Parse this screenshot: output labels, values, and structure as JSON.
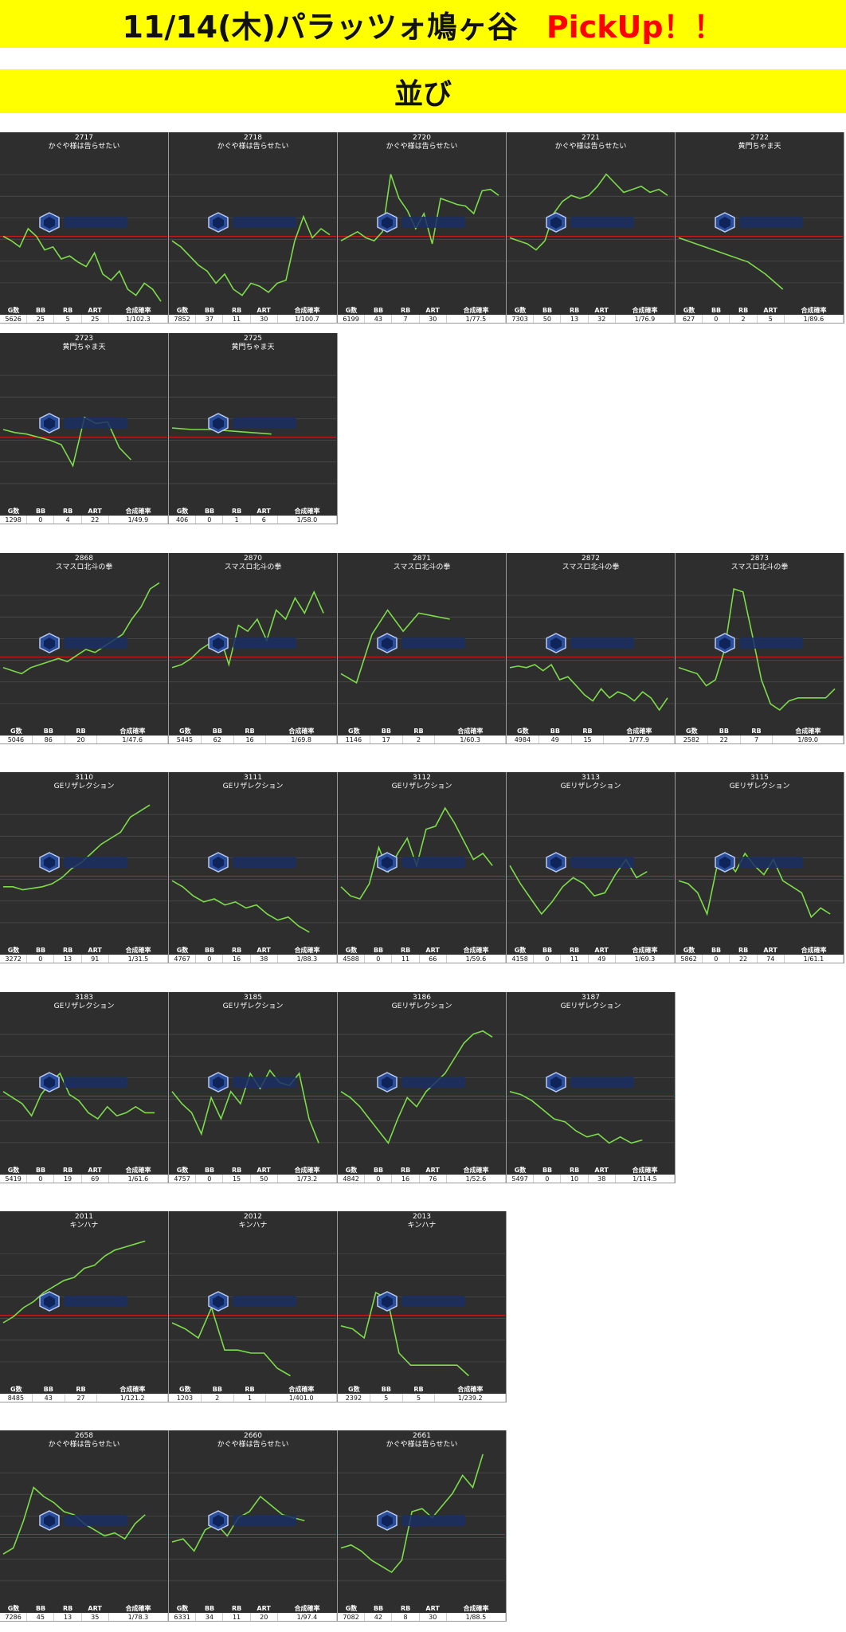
{
  "title": {
    "main": "11/14(木)パラッツォ鳩ヶ谷",
    "pick": "PickUp！！"
  },
  "section": {
    "label": "並び"
  },
  "watermark": {
    "name": "アナスロ",
    "sub": "Analysis Slot"
  },
  "colors": {
    "banner": "#ffff00",
    "line": "#7ddc4a",
    "redline": "#c81e1e",
    "panel": "#2e2e2e"
  },
  "panels": [
    {
      "id": "2717",
      "model": "かぐや様は告らせたい",
      "cols": [
        "G数",
        "BB",
        "RB",
        "ART",
        "合成確率"
      ],
      "vals": [
        "5626",
        "25",
        "5",
        "25",
        "1/102.3"
      ],
      "line": [
        0.55,
        0.58,
        0.62,
        0.5,
        0.55,
        0.64,
        0.62,
        0.7,
        0.68,
        0.72,
        0.75,
        0.66,
        0.8,
        0.84,
        0.78,
        0.9,
        0.94,
        0.86,
        0.9,
        0.98
      ]
    },
    {
      "id": "2718",
      "model": "かぐや様は告らせたい",
      "cols": [
        "G数",
        "BB",
        "RB",
        "ART",
        "合成確率"
      ],
      "vals": [
        "7852",
        "37",
        "11",
        "30",
        "1/100.7"
      ],
      "line": [
        0.58,
        0.62,
        0.68,
        0.74,
        0.78,
        0.86,
        0.8,
        0.9,
        0.94,
        0.86,
        0.88,
        0.92,
        0.86,
        0.84,
        0.58,
        0.42,
        0.56,
        0.5,
        0.54
      ]
    },
    {
      "id": "2720",
      "model": "かぐや様は告らせたい",
      "cols": [
        "G数",
        "BB",
        "RB",
        "ART",
        "合成確率"
      ],
      "vals": [
        "6199",
        "43",
        "7",
        "30",
        "1/77.5"
      ],
      "line": [
        0.58,
        0.55,
        0.52,
        0.56,
        0.58,
        0.52,
        0.14,
        0.3,
        0.38,
        0.5,
        0.4,
        0.6,
        0.3,
        0.32,
        0.34,
        0.35,
        0.4,
        0.25,
        0.24,
        0.28
      ]
    },
    {
      "id": "2721",
      "model": "かぐや様は告らせたい",
      "cols": [
        "G数",
        "BB",
        "RB",
        "ART",
        "合成確率"
      ],
      "vals": [
        "7303",
        "50",
        "13",
        "32",
        "1/76.9"
      ],
      "line": [
        0.56,
        0.58,
        0.6,
        0.64,
        0.58,
        0.4,
        0.32,
        0.28,
        0.3,
        0.28,
        0.22,
        0.14,
        0.2,
        0.26,
        0.24,
        0.22,
        0.26,
        0.24,
        0.28
      ]
    },
    {
      "id": "2722",
      "model": "黄門ちゃま天",
      "cols": [
        "G数",
        "BB",
        "RB",
        "ART",
        "合成確率"
      ],
      "vals": [
        "627",
        "0",
        "2",
        "5",
        "1/89.6"
      ],
      "line": [
        0.56,
        0.6,
        0.64,
        0.68,
        0.72,
        0.8,
        0.9
      ]
    },
    {
      "id": "2723",
      "model": "黄門ちゃま天",
      "cols": [
        "G数",
        "BB",
        "RB",
        "ART",
        "合成確率"
      ],
      "vals": [
        "1298",
        "0",
        "4",
        "22",
        "1/49.9"
      ],
      "line": [
        0.5,
        0.52,
        0.53,
        0.55,
        0.57,
        0.6,
        0.74,
        0.42,
        0.46,
        0.45,
        0.62,
        0.7
      ]
    },
    {
      "id": "2725",
      "model": "黄門ちゃま天",
      "cols": [
        "G数",
        "BB",
        "RB",
        "ART",
        "合成確率"
      ],
      "vals": [
        "406",
        "0",
        "1",
        "6",
        "1/58.0"
      ],
      "line": [
        0.49,
        0.5,
        0.5,
        0.51,
        0.52,
        0.53
      ]
    },
    {
      "id": "2868",
      "model": "スマスロ北斗の拳",
      "cols": [
        "G数",
        "BB",
        "RB",
        "合成確率"
      ],
      "vals": [
        "5046",
        "86",
        "20",
        "1/47.6"
      ],
      "line": [
        0.62,
        0.64,
        0.66,
        0.62,
        0.6,
        0.58,
        0.56,
        0.58,
        0.54,
        0.5,
        0.52,
        0.48,
        0.44,
        0.4,
        0.3,
        0.22,
        0.1,
        0.06
      ]
    },
    {
      "id": "2870",
      "model": "スマスロ北斗の拳",
      "cols": [
        "G数",
        "BB",
        "RB",
        "合成確率"
      ],
      "vals": [
        "5445",
        "62",
        "16",
        "1/69.8"
      ],
      "line": [
        0.62,
        0.6,
        0.56,
        0.5,
        0.46,
        0.4,
        0.6,
        0.34,
        0.38,
        0.3,
        0.44,
        0.24,
        0.3,
        0.16,
        0.26,
        0.12,
        0.26
      ]
    },
    {
      "id": "2871",
      "model": "スマスロ北斗の拳",
      "cols": [
        "G数",
        "BB",
        "RB",
        "合成確率"
      ],
      "vals": [
        "1146",
        "17",
        "2",
        "1/60.3"
      ],
      "line": [
        0.66,
        0.72,
        0.4,
        0.24,
        0.38,
        0.26,
        0.28,
        0.3
      ]
    },
    {
      "id": "2872",
      "model": "スマスロ北斗の拳",
      "cols": [
        "G数",
        "BB",
        "RB",
        "合成確率"
      ],
      "vals": [
        "4984",
        "49",
        "15",
        "1/77.9"
      ],
      "line": [
        0.62,
        0.61,
        0.62,
        0.6,
        0.64,
        0.6,
        0.7,
        0.68,
        0.74,
        0.8,
        0.84,
        0.76,
        0.82,
        0.78,
        0.8,
        0.84,
        0.78,
        0.82,
        0.9,
        0.82
      ]
    },
    {
      "id": "2873",
      "model": "スマスロ北斗の拳",
      "cols": [
        "G数",
        "BB",
        "RB",
        "合成確率"
      ],
      "vals": [
        "2582",
        "22",
        "7",
        "1/89.0"
      ],
      "line": [
        0.62,
        0.64,
        0.66,
        0.74,
        0.7,
        0.5,
        0.1,
        0.12,
        0.4,
        0.7,
        0.86,
        0.9,
        0.84,
        0.82,
        0.82,
        0.82,
        0.82,
        0.76
      ]
    },
    {
      "id": "3110",
      "model": "GEリザレクション",
      "cols": [
        "G数",
        "BB",
        "RB",
        "ART",
        "合成確率"
      ],
      "vals": [
        "3272",
        "0",
        "13",
        "91",
        "1/31.5"
      ],
      "line": [
        0.62,
        0.62,
        0.64,
        0.63,
        0.62,
        0.6,
        0.56,
        0.5,
        0.46,
        0.4,
        0.34,
        0.3,
        0.26,
        0.16,
        0.12,
        0.08
      ]
    },
    {
      "id": "3111",
      "model": "GEリザレクション",
      "cols": [
        "G数",
        "BB",
        "RB",
        "ART",
        "合成確率"
      ],
      "vals": [
        "4767",
        "0",
        "16",
        "38",
        "1/88.3"
      ],
      "line": [
        0.58,
        0.62,
        0.68,
        0.72,
        0.7,
        0.74,
        0.72,
        0.76,
        0.74,
        0.8,
        0.84,
        0.82,
        0.88,
        0.92
      ]
    },
    {
      "id": "3112",
      "model": "GEリザレクション",
      "cols": [
        "G数",
        "BB",
        "RB",
        "ART",
        "合成確率"
      ],
      "vals": [
        "4588",
        "0",
        "11",
        "66",
        "1/59.6"
      ],
      "line": [
        0.62,
        0.68,
        0.7,
        0.6,
        0.36,
        0.52,
        0.4,
        0.3,
        0.48,
        0.24,
        0.22,
        0.1,
        0.2,
        0.32,
        0.44,
        0.4,
        0.48
      ]
    },
    {
      "id": "3113",
      "model": "GEリザレクション",
      "cols": [
        "G数",
        "BB",
        "RB",
        "ART",
        "合成確率"
      ],
      "vals": [
        "4158",
        "0",
        "11",
        "49",
        "1/69.3"
      ],
      "line": [
        0.48,
        0.6,
        0.7,
        0.8,
        0.72,
        0.62,
        0.56,
        0.6,
        0.68,
        0.66,
        0.54,
        0.44,
        0.56,
        0.52
      ]
    },
    {
      "id": "3115",
      "model": "GEリザレクション",
      "cols": [
        "G数",
        "BB",
        "RB",
        "ART",
        "合成確率"
      ],
      "vals": [
        "5862",
        "0",
        "22",
        "74",
        "1/61.1"
      ],
      "line": [
        0.58,
        0.6,
        0.66,
        0.8,
        0.5,
        0.44,
        0.52,
        0.4,
        0.48,
        0.54,
        0.44,
        0.58,
        0.62,
        0.66,
        0.82,
        0.76,
        0.8
      ]
    },
    {
      "id": "3183",
      "model": "GEリザレクション",
      "cols": [
        "G数",
        "BB",
        "RB",
        "ART",
        "合成確率"
      ],
      "vals": [
        "5419",
        "0",
        "19",
        "69",
        "1/61.6"
      ],
      "line": [
        0.52,
        0.56,
        0.6,
        0.68,
        0.54,
        0.46,
        0.4,
        0.54,
        0.58,
        0.66,
        0.7,
        0.62,
        0.68,
        0.66,
        0.62,
        0.66,
        0.66
      ]
    },
    {
      "id": "3185",
      "model": "GEリザレクション",
      "cols": [
        "G数",
        "BB",
        "RB",
        "ART",
        "合成確率"
      ],
      "vals": [
        "4757",
        "0",
        "15",
        "50",
        "1/73.2"
      ],
      "line": [
        0.52,
        0.6,
        0.66,
        0.8,
        0.56,
        0.7,
        0.52,
        0.6,
        0.4,
        0.5,
        0.38,
        0.46,
        0.48,
        0.4,
        0.7,
        0.86
      ]
    },
    {
      "id": "3186",
      "model": "GEリザレクション",
      "cols": [
        "G数",
        "BB",
        "RB",
        "ART",
        "合成確率"
      ],
      "vals": [
        "4842",
        "0",
        "16",
        "76",
        "1/52.6"
      ],
      "line": [
        0.52,
        0.56,
        0.62,
        0.7,
        0.78,
        0.86,
        0.7,
        0.56,
        0.62,
        0.52,
        0.46,
        0.4,
        0.3,
        0.2,
        0.14,
        0.12,
        0.16
      ]
    },
    {
      "id": "3187",
      "model": "GEリザレクション",
      "cols": [
        "G数",
        "BB",
        "RB",
        "ART",
        "合成確率"
      ],
      "vals": [
        "5497",
        "0",
        "10",
        "38",
        "1/114.5"
      ],
      "line": [
        0.52,
        0.54,
        0.58,
        0.64,
        0.7,
        0.72,
        0.78,
        0.82,
        0.8,
        0.86,
        0.82,
        0.86,
        0.84
      ]
    },
    {
      "id": "2011",
      "model": "キンハナ",
      "cols": [
        "G数",
        "BB",
        "RB",
        "合成確率"
      ],
      "vals": [
        "8485",
        "43",
        "27",
        "1/121.2"
      ],
      "line": [
        0.6,
        0.56,
        0.5,
        0.46,
        0.4,
        0.36,
        0.32,
        0.3,
        0.24,
        0.22,
        0.16,
        0.12,
        0.1,
        0.08,
        0.06
      ]
    },
    {
      "id": "2012",
      "model": "キンハナ",
      "cols": [
        "G数",
        "BB",
        "RB",
        "合成確率"
      ],
      "vals": [
        "1203",
        "2",
        "1",
        "1/401.0"
      ],
      "line": [
        0.6,
        0.64,
        0.7,
        0.5,
        0.78,
        0.78,
        0.8,
        0.8,
        0.9,
        0.95
      ]
    },
    {
      "id": "2013",
      "model": "キンハナ",
      "cols": [
        "G数",
        "BB",
        "RB",
        "合成確率"
      ],
      "vals": [
        "2392",
        "5",
        "5",
        "1/239.2"
      ],
      "line": [
        0.62,
        0.64,
        0.7,
        0.4,
        0.44,
        0.8,
        0.88,
        0.88,
        0.88,
        0.88,
        0.88,
        0.95
      ]
    },
    {
      "id": "2658",
      "model": "かぐや様は告らせたい",
      "cols": [
        "G数",
        "BB",
        "RB",
        "ART",
        "合成確率"
      ],
      "vals": [
        "7286",
        "45",
        "13",
        "35",
        "1/78.3"
      ],
      "line": [
        0.68,
        0.64,
        0.46,
        0.24,
        0.3,
        0.34,
        0.4,
        0.42,
        0.48,
        0.52,
        0.56,
        0.54,
        0.58,
        0.48,
        0.42
      ]
    },
    {
      "id": "2660",
      "model": "かぐや様は告らせたい",
      "cols": [
        "G数",
        "BB",
        "RB",
        "ART",
        "合成確率"
      ],
      "vals": [
        "6331",
        "34",
        "11",
        "20",
        "1/97.4"
      ],
      "line": [
        0.6,
        0.58,
        0.66,
        0.52,
        0.48,
        0.56,
        0.44,
        0.4,
        0.3,
        0.36,
        0.42,
        0.44,
        0.46
      ]
    },
    {
      "id": "2661",
      "model": "かぐや様は告らせたい",
      "cols": [
        "G数",
        "BB",
        "RB",
        "ART",
        "合成確率"
      ],
      "vals": [
        "7082",
        "42",
        "8",
        "30",
        "1/88.5"
      ],
      "line": [
        0.64,
        0.62,
        0.66,
        0.72,
        0.76,
        0.8,
        0.72,
        0.4,
        0.38,
        0.44,
        0.36,
        0.28,
        0.16,
        0.24,
        0.02
      ]
    }
  ]
}
